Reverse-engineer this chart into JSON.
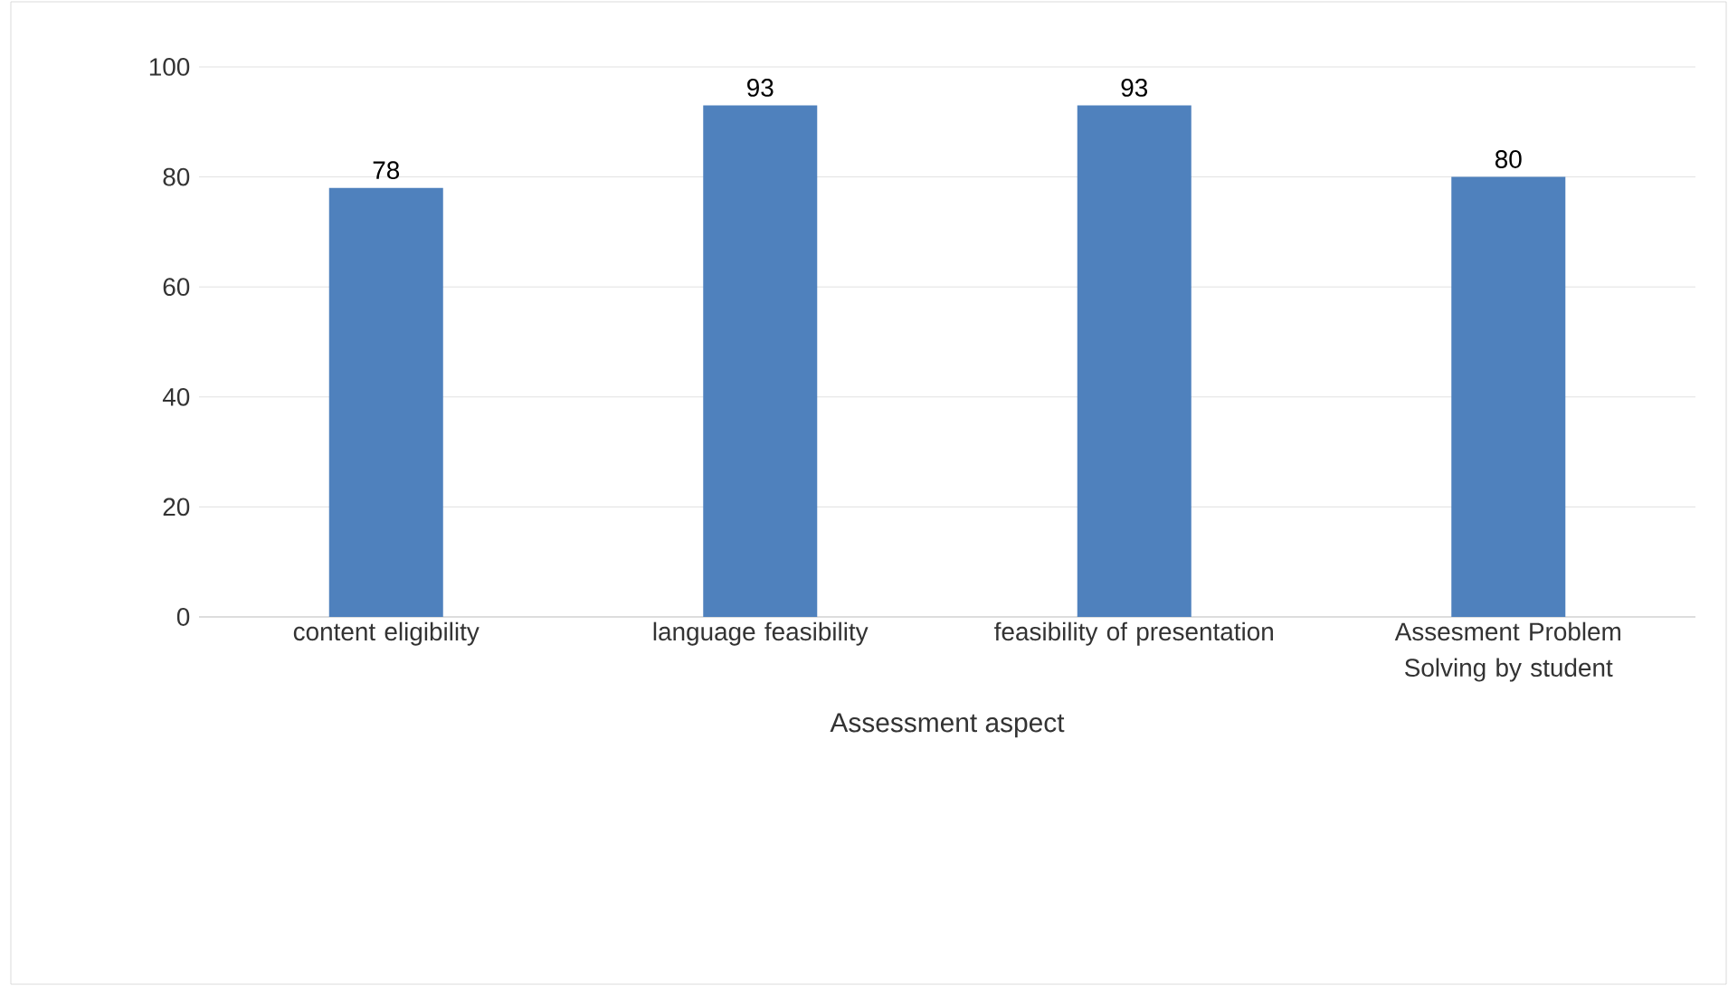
{
  "chart_data": {
    "type": "bar",
    "xlabel": "Assessment aspect",
    "categories": [
      "content eligibility",
      "language feasibility",
      "feasibility of presentation",
      "Assesment Problem Solving by student"
    ],
    "values": [
      78,
      93,
      93,
      80
    ],
    "color": "#4f81bd",
    "ylim": [
      0,
      100
    ],
    "yticks": [
      0,
      20,
      40,
      60,
      80,
      100
    ],
    "grid": "y",
    "data_labels": true
  }
}
